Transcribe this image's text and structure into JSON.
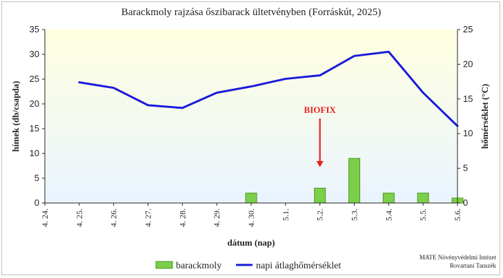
{
  "chart_data": {
    "type": "bar",
    "title": "Barackmoly rajzása őszibarack ültetvényben (Forráskút, 2025)",
    "xlabel": "dátum (nap)",
    "ylabel": "hímek (db/csapda)",
    "ylabel_right": "hőmérséklet (°C)",
    "categories": [
      "4. 24.",
      "4. 25.",
      "4. 26.",
      "4. 27.",
      "4. 28.",
      "4. 29.",
      "4. 30.",
      "5.1.",
      "5.2.",
      "5.3.",
      "5.4.",
      "5.5.",
      "5.6."
    ],
    "ylim": [
      0,
      35
    ],
    "yticks": [
      0,
      5,
      10,
      15,
      20,
      25,
      30,
      35
    ],
    "y2lim": [
      0,
      25
    ],
    "y2ticks": [
      0,
      5,
      10,
      15,
      20,
      25
    ],
    "series": [
      {
        "name": "barackmoly",
        "type": "bar",
        "axis": "left",
        "color": "#7dce4a",
        "values": [
          0,
          0,
          0,
          0,
          0,
          0,
          2,
          0,
          3,
          9,
          2,
          2,
          1
        ]
      },
      {
        "name": "napi átlaghőmérséklet",
        "type": "line",
        "axis": "right",
        "color": "#1a1adb",
        "values": [
          null,
          17.4,
          16.6,
          14.1,
          13.7,
          15.9,
          16.8,
          17.9,
          18.4,
          21.2,
          21.8,
          15.9,
          11.1
        ]
      }
    ],
    "annotation": {
      "text": "BIOFIX",
      "at": "5.2.",
      "color": "#e8201e"
    },
    "grid": false,
    "legend": "bottom",
    "plot_background": [
      "#ffffe0",
      "#eaf4ff"
    ]
  },
  "credit": {
    "line1": "MATE Növényvédelmi Intézet",
    "line2": "Rovartani Tanszék"
  }
}
